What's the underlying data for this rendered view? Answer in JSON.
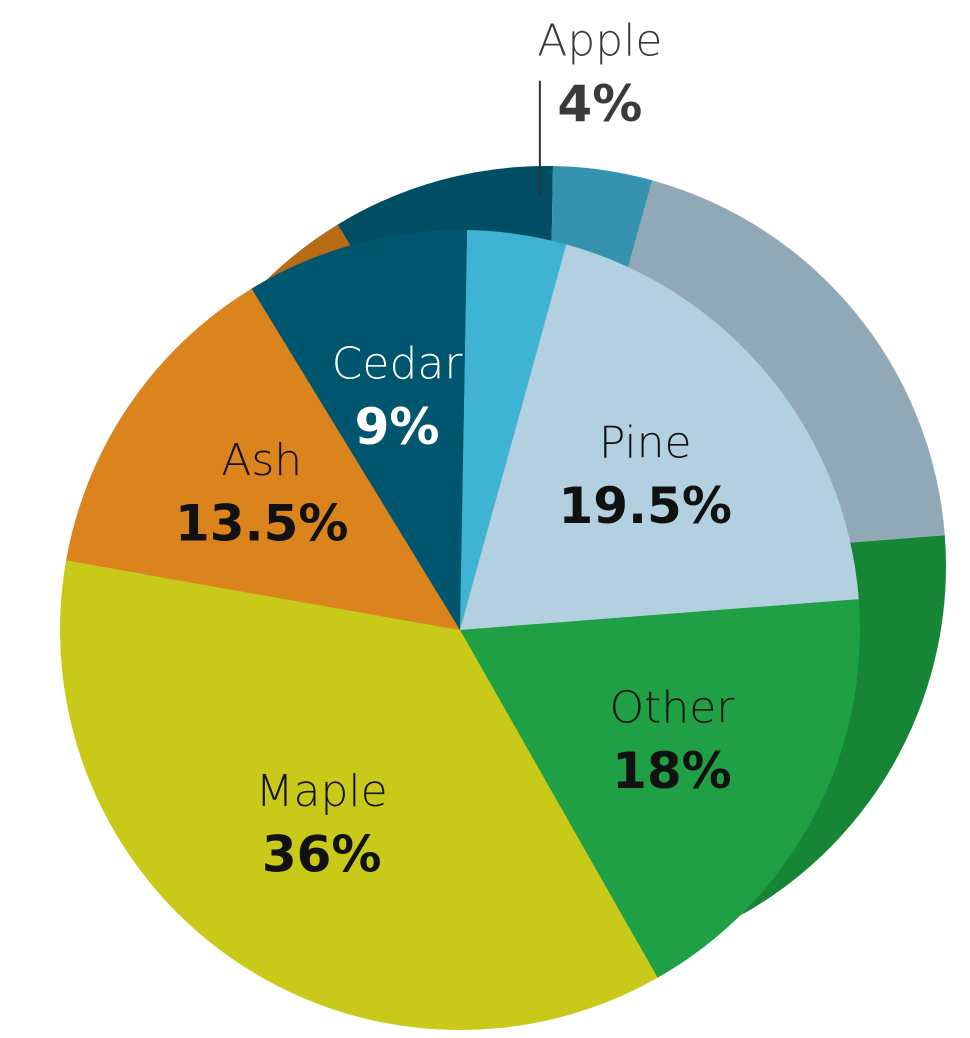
{
  "chart_data": {
    "type": "pie",
    "categories": [
      "Apple",
      "Pine",
      "Other",
      "Maple",
      "Ash",
      "Cedar"
    ],
    "values": [
      4,
      19.5,
      18,
      36,
      13.5,
      9
    ],
    "value_labels": [
      "4%",
      "19.5%",
      "18%",
      "36%",
      "13.5%",
      "9%"
    ],
    "colors": [
      "#3fb3d3",
      "#b2d0e0",
      "#1fa045",
      "#c8c918",
      "#db841d",
      "#00566e"
    ],
    "side_colors": [
      "#3593b0",
      "#91a9b6",
      "#168636",
      "#a5a612",
      "#b66b14",
      "#004e64"
    ],
    "label_colors": [
      "#3a3a3a",
      "#111111",
      "#111111",
      "#111111",
      "#111111",
      "#ffffff"
    ]
  }
}
